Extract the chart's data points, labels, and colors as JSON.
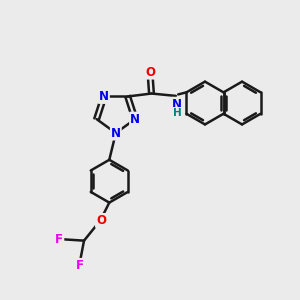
{
  "background_color": "#ebebeb",
  "bond_color": "#1a1a1a",
  "bond_width": 1.8,
  "atom_colors": {
    "N": "#0000ee",
    "O": "#ee0000",
    "F": "#ee00ee",
    "H": "#008080"
  },
  "font_size": 8.5,
  "fig_width": 3.0,
  "fig_height": 3.0,
  "dpi": 100
}
